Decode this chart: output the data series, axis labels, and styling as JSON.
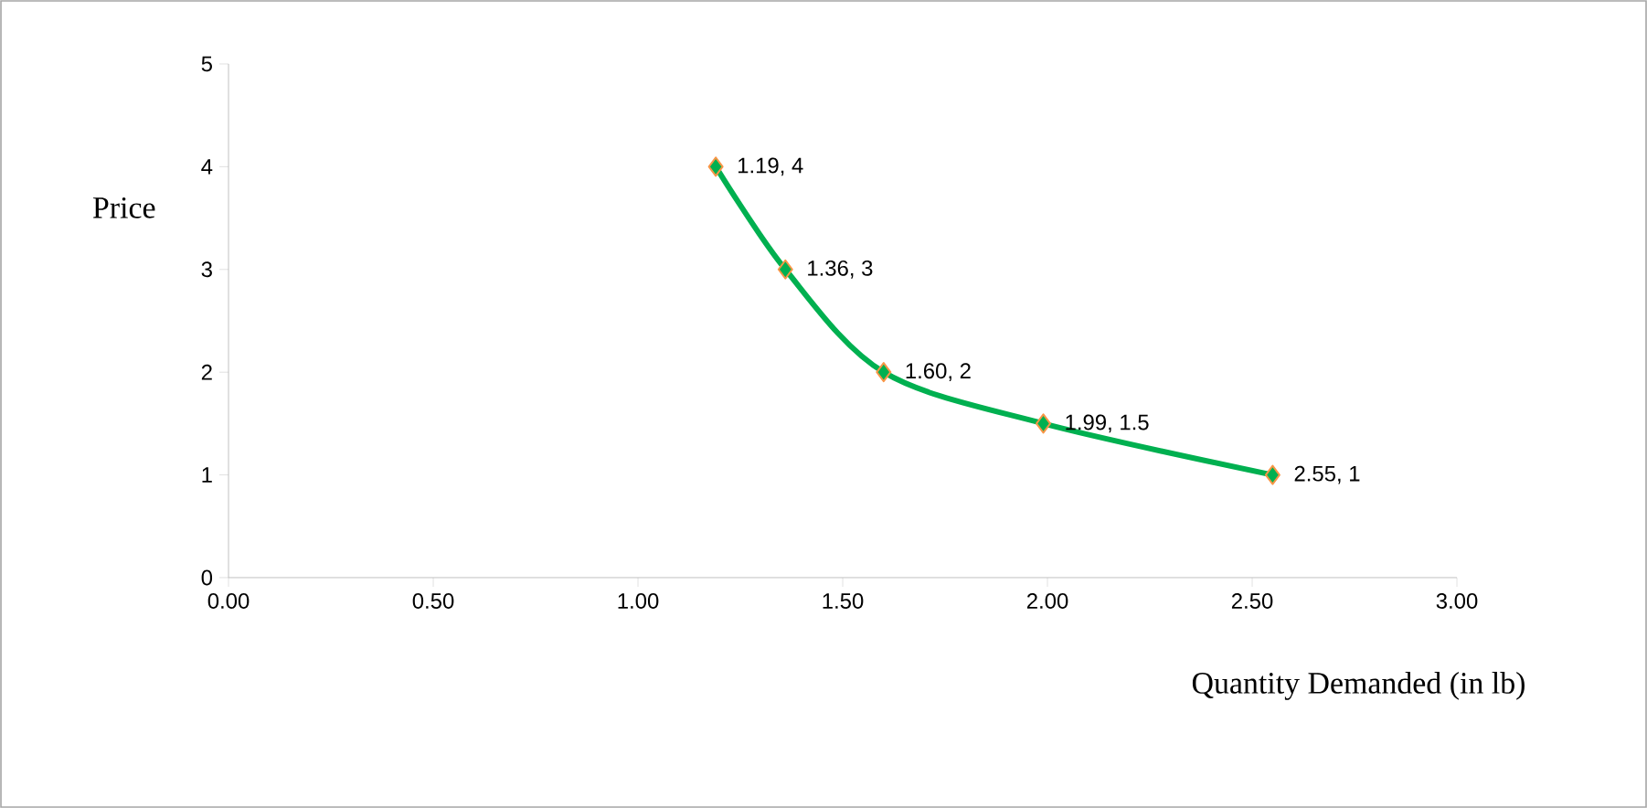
{
  "chart_data": {
    "type": "line",
    "ylabel": "Price",
    "xlabel": "Quantity Demanded (in lb)",
    "x": [
      1.19,
      1.36,
      1.6,
      1.99,
      2.55
    ],
    "values": [
      4,
      3,
      2,
      1.5,
      1
    ],
    "value_labels": [
      "1.19, 4",
      "1.36, 3",
      "1.60, 2",
      "1.99, 1.5",
      "2.55, 1"
    ],
    "color": "#00b050",
    "marker": "diamond",
    "line_style": "solid",
    "xlim": [
      0,
      3
    ],
    "ylim": [
      0,
      5
    ],
    "xticks": [
      {
        "value": 0,
        "label": "0.00"
      },
      {
        "value": 0.5,
        "label": "0.50"
      },
      {
        "value": 1,
        "label": "1.00"
      },
      {
        "value": 1.5,
        "label": "1.50"
      },
      {
        "value": 2,
        "label": "2.00"
      },
      {
        "value": 2.5,
        "label": "2.50"
      },
      {
        "value": 3,
        "label": "3.00"
      }
    ],
    "yticks": [
      0,
      1,
      2,
      3,
      4,
      5
    ],
    "grid": false
  }
}
